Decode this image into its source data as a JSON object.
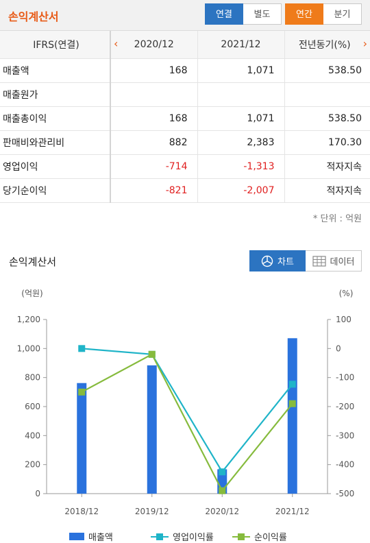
{
  "header": {
    "title": "손익계산서",
    "consolidation": [
      "연결",
      "별도"
    ],
    "period": [
      "연간",
      "분기"
    ]
  },
  "table": {
    "headers": [
      "IFRS(연결)",
      "2020/12",
      "2021/12",
      "전년동기(%)"
    ],
    "rows": [
      {
        "label": "매출액",
        "v2020": "168",
        "v2021": "1,071",
        "yoy": "538.50",
        "neg": false
      },
      {
        "label": "매출원가",
        "v2020": "",
        "v2021": "",
        "yoy": "",
        "neg": false
      },
      {
        "label": "매출총이익",
        "v2020": "168",
        "v2021": "1,071",
        "yoy": "538.50",
        "neg": false
      },
      {
        "label": "판매비와관리비",
        "v2020": "882",
        "v2021": "2,383",
        "yoy": "170.30",
        "neg": false
      },
      {
        "label": "영업이익",
        "v2020": "-714",
        "v2021": "-1,313",
        "yoy": "적자지속",
        "neg": true
      },
      {
        "label": "당기순이익",
        "v2020": "-821",
        "v2021": "-2,007",
        "yoy": "적자지속",
        "neg": true
      }
    ],
    "unit_note": "* 단위 : 억원"
  },
  "chart_section": {
    "title": "손익계산서",
    "toggle": [
      "차트",
      "데이터"
    ]
  },
  "chart_data": {
    "type": "bar",
    "categories": [
      "2018/12",
      "2019/12",
      "2020/12",
      "2021/12"
    ],
    "left_axis": {
      "label": "(억원)",
      "min": 0,
      "max": 1200,
      "ticks": [
        "0",
        "200",
        "400",
        "600",
        "800",
        "1,000",
        "1,200"
      ]
    },
    "right_axis": {
      "label": "(%)",
      "min": -500,
      "max": 100,
      "ticks": [
        "-500",
        "-400",
        "-300",
        "-200",
        "-100",
        "0",
        "100"
      ]
    },
    "series": [
      {
        "name": "매출액",
        "kind": "bar",
        "axis": "left",
        "color": "#2a72dd",
        "values": [
          762,
          884,
          168,
          1071
        ]
      },
      {
        "name": "영업이익률",
        "kind": "line",
        "axis": "right",
        "color": "#1fb4c8",
        "values": [
          0,
          -20,
          -425,
          -123
        ]
      },
      {
        "name": "순이익률",
        "kind": "line",
        "axis": "right",
        "color": "#86bb3d",
        "values": [
          -150,
          -20,
          -490,
          -190
        ]
      }
    ],
    "grid": false,
    "legend": "bottom"
  }
}
